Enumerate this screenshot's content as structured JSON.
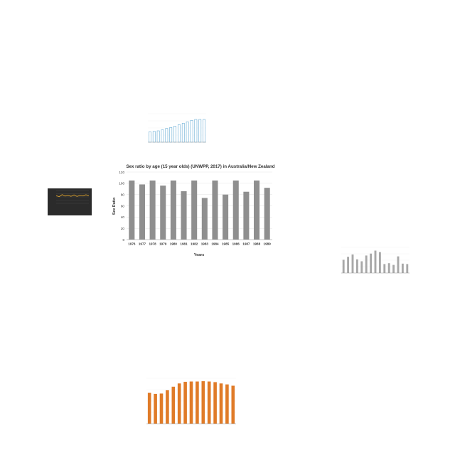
{
  "chart_data": [
    {
      "id": "main",
      "type": "bar",
      "title": "Sex ratio by age (15 year olds) (UNWPP, 2017) in Australia/New Zealand",
      "xlabel": "Years",
      "ylabel": "Sex Ratio",
      "categories": [
        "1976",
        "1977",
        "1978",
        "1979",
        "1980",
        "1981",
        "1982",
        "1983",
        "1984",
        "1985",
        "1986",
        "1987",
        "1988",
        "1989"
      ],
      "values": [
        105,
        98,
        105,
        96,
        105,
        86,
        105,
        74,
        105,
        80,
        105,
        85,
        105,
        92
      ],
      "ylim": [
        0,
        120
      ],
      "yticks": [
        0,
        20,
        40,
        60,
        80,
        100,
        120
      ],
      "bar_color": "#8f8f8f",
      "grid": true
    },
    {
      "id": "top-thumb",
      "type": "bar",
      "title": "",
      "xlabel": "",
      "ylabel": "",
      "categories": [
        "",
        "",
        "",
        "",
        "",
        "",
        "",
        "",
        "",
        "",
        "",
        "",
        "",
        ""
      ],
      "values": [
        22,
        23,
        24,
        26,
        29,
        31,
        34,
        37,
        40,
        43,
        46,
        48,
        48,
        48
      ],
      "ylim": [
        0,
        60
      ],
      "bar_color": "#ffffff",
      "bar_stroke": "#6aaed6",
      "grid": true
    },
    {
      "id": "left-thumb",
      "type": "line",
      "title": "",
      "xlabel": "",
      "ylabel": "",
      "x": [
        1,
        2,
        3,
        4,
        5,
        6,
        7,
        8,
        9,
        10,
        11,
        12
      ],
      "values": [
        60,
        52,
        68,
        57,
        63,
        55,
        66,
        54,
        62,
        58,
        67,
        60
      ],
      "ylim": [
        0,
        100
      ],
      "background": "#2b2b2b",
      "line_color": "#e0a52e",
      "grid": true
    },
    {
      "id": "right-thumb",
      "type": "bar",
      "title": "",
      "xlabel": "",
      "ylabel": "",
      "categories": [
        "",
        "",
        "",
        "",
        "",
        "",
        "",
        "",
        "",
        "",
        "",
        "",
        "",
        "",
        ""
      ],
      "values": [
        620,
        760,
        870,
        640,
        550,
        820,
        910,
        1050,
        980,
        420,
        460,
        380,
        780,
        440,
        420
      ],
      "ylim": [
        0,
        1200
      ],
      "bar_color": "#a8a8a8",
      "grid": true
    },
    {
      "id": "bottom-thumb",
      "type": "bar",
      "title": "",
      "xlabel": "",
      "ylabel": "",
      "categories": [
        "",
        "",
        "",
        "",
        "",
        "",
        "",
        "",
        "",
        "",
        "",
        "",
        "",
        "",
        ""
      ],
      "values": [
        95,
        92,
        93,
        103,
        114,
        124,
        129,
        130,
        130,
        131,
        130,
        128,
        124,
        121,
        117
      ],
      "ylim": [
        0,
        140
      ],
      "bar_color": "#e07b28",
      "grid": true
    }
  ]
}
